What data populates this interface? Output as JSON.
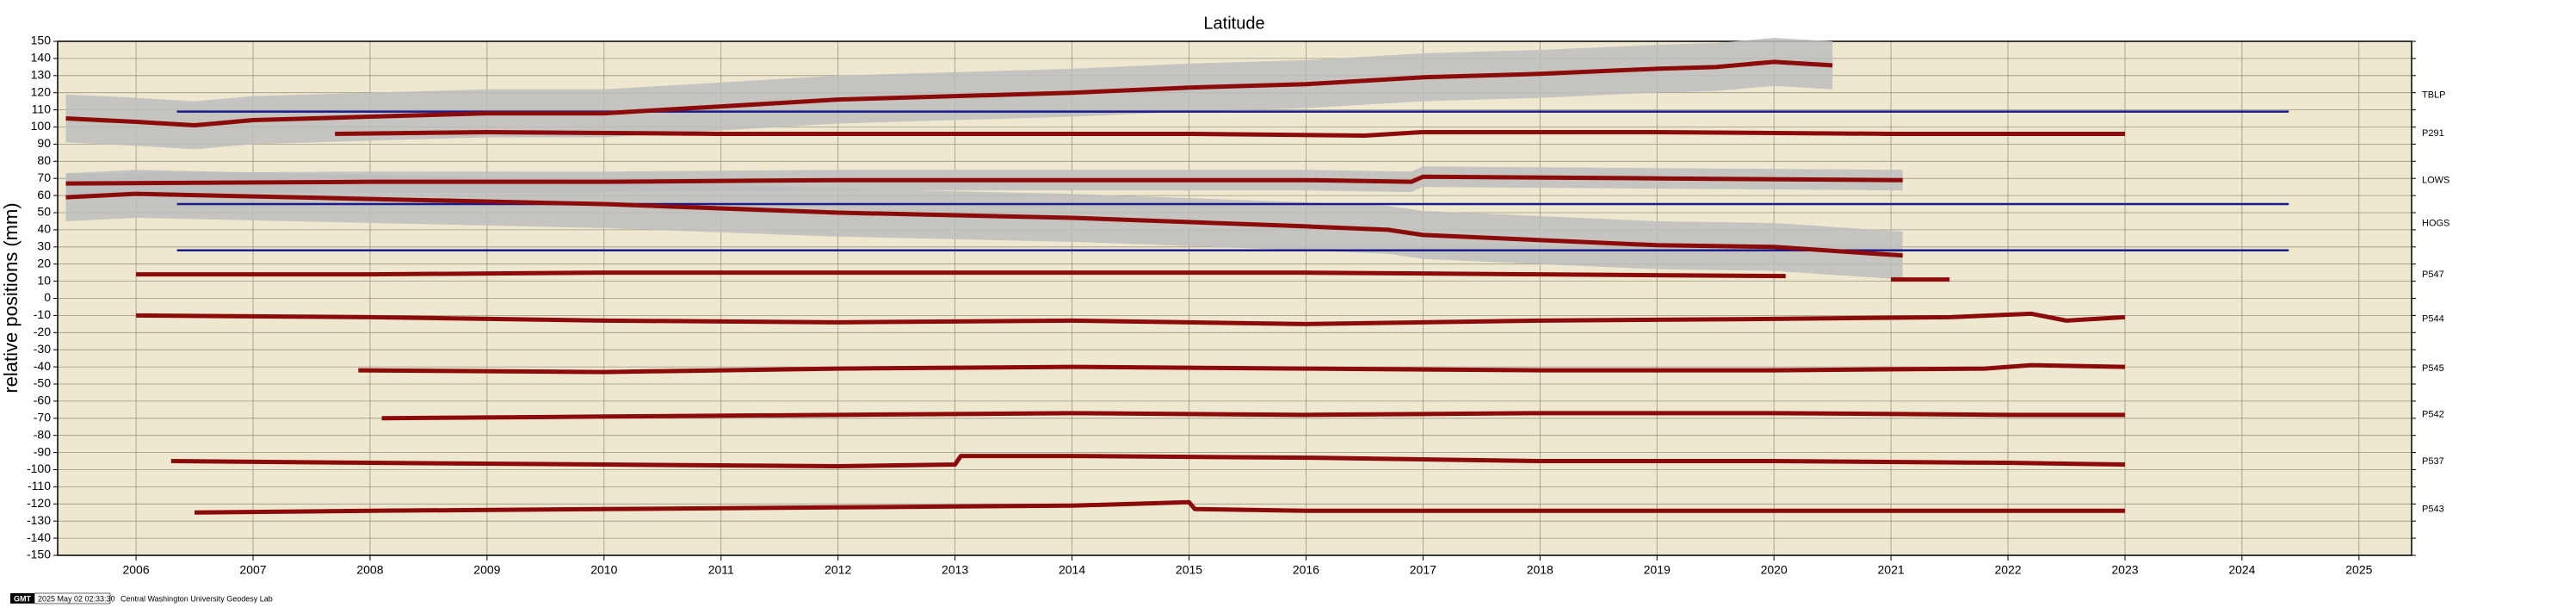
{
  "chart_data": {
    "type": "line",
    "title": "Latitude",
    "y_label": "relative positions (mm)",
    "xlim": [
      2005.33,
      2025.45
    ],
    "ylim": [
      -150,
      150
    ],
    "xticks": [
      2006,
      2007,
      2008,
      2009,
      2010,
      2011,
      2012,
      2013,
      2014,
      2015,
      2016,
      2017,
      2018,
      2019,
      2020,
      2021,
      2022,
      2023,
      2024,
      2025
    ],
    "yticks": [
      -150,
      -140,
      -130,
      -120,
      -110,
      -100,
      -90,
      -80,
      -70,
      -60,
      -50,
      -40,
      -30,
      -20,
      -10,
      0,
      10,
      20,
      30,
      40,
      50,
      60,
      70,
      80,
      90,
      100,
      110,
      120,
      130,
      140,
      150
    ],
    "grid": true,
    "background": "#efe8d0",
    "band_color": "#bdbdbd",
    "series": [
      {
        "name": "TBLP",
        "color": "#8b0a0a",
        "band": 14,
        "x": [
          2005.4,
          2006,
          2006.5,
          2007,
          2008,
          2009,
          2010,
          2011,
          2012,
          2013,
          2014,
          2015,
          2016,
          2017,
          2018,
          2019,
          2019.5,
          2020,
          2020.5
        ],
        "values": [
          105,
          103,
          101,
          104,
          106,
          108,
          108,
          112,
          116,
          118,
          120,
          123,
          125,
          129,
          131,
          134,
          135,
          138,
          136
        ]
      },
      {
        "name": "P291",
        "color": "#8b0a0a",
        "x": [
          2007.7,
          2009,
          2011,
          2013,
          2015,
          2016.5,
          2017,
          2019,
          2021,
          2023
        ],
        "values": [
          96,
          97,
          96,
          96,
          96,
          95,
          97,
          97,
          96,
          96
        ]
      },
      {
        "name": "LOWS",
        "color": "#8b0a0a",
        "band": 6,
        "x": [
          2005.4,
          2008,
          2010,
          2012,
          2014,
          2016,
          2016.9,
          2017,
          2019,
          2021.1
        ],
        "values": [
          67,
          68,
          68,
          69,
          69,
          69,
          68,
          71,
          70,
          69
        ]
      },
      {
        "name": "HOGS",
        "color": "#8b0a0a",
        "band": 14,
        "x": [
          2005.4,
          2006,
          2008,
          2010,
          2012,
          2014,
          2016,
          2016.7,
          2017,
          2018,
          2019,
          2020,
          2021.1
        ],
        "values": [
          59,
          61,
          58,
          55,
          50,
          47,
          42,
          40,
          37,
          34,
          31,
          30,
          25
        ]
      },
      {
        "name": "P547",
        "color": "#8b0a0a",
        "x": [
          2006,
          2008,
          2010,
          2012,
          2014,
          2016,
          2018,
          2020.1,
          2020.5,
          2021,
          2021.5
        ],
        "values": [
          14,
          14,
          15,
          15,
          15,
          15,
          14,
          13,
          null,
          11,
          11
        ]
      },
      {
        "name": "P544",
        "color": "#8b0a0a",
        "x": [
          2006,
          2008,
          2010,
          2012,
          2014,
          2016,
          2018,
          2020,
          2021.5,
          2022.2,
          2022.5,
          2023
        ],
        "values": [
          -10,
          -11,
          -13,
          -14,
          -13,
          -15,
          -13,
          -12,
          -11,
          -9,
          -13,
          -11
        ]
      },
      {
        "name": "P545",
        "color": "#8b0a0a",
        "x": [
          2007.9,
          2010,
          2012,
          2014,
          2016,
          2018,
          2020,
          2021.8,
          2022.2,
          2023
        ],
        "values": [
          -42,
          -43,
          -41,
          -40,
          -41,
          -42,
          -42,
          -41,
          -39,
          -40
        ]
      },
      {
        "name": "P542",
        "color": "#8b0a0a",
        "x": [
          2008.1,
          2010,
          2012,
          2014,
          2016,
          2018,
          2020,
          2022,
          2023
        ],
        "values": [
          -70,
          -69,
          -68,
          -67,
          -68,
          -67,
          -67,
          -68,
          -68
        ]
      },
      {
        "name": "P537",
        "color": "#8b0a0a",
        "x": [
          2006.3,
          2008,
          2010,
          2012,
          2013,
          2013.05,
          2014,
          2016,
          2018,
          2020,
          2022,
          2023
        ],
        "values": [
          -95,
          -96,
          -97,
          -98,
          -97,
          -92,
          -92,
          -93,
          -95,
          -95,
          -96,
          -97
        ]
      },
      {
        "name": "P543",
        "color": "#8b0a0a",
        "x": [
          2006.5,
          2008,
          2010,
          2012,
          2014,
          2015,
          2015.05,
          2016,
          2018,
          2020,
          2022,
          2023
        ],
        "values": [
          -125,
          -124,
          -123,
          -122,
          -121,
          -119,
          -123,
          -124,
          -124,
          -124,
          -124,
          -124
        ]
      }
    ],
    "reference_lines": [
      {
        "color": "#1a1a8c",
        "y": 109,
        "x": [
          2006.35,
          2024.4
        ]
      },
      {
        "color": "#1a1a8c",
        "y": 55,
        "x": [
          2006.35,
          2024.4
        ]
      },
      {
        "color": "#1a1a8c",
        "y": 28,
        "x": [
          2006.35,
          2024.4
        ]
      }
    ],
    "footer": {
      "logo": "GMT",
      "timestamp": "2025 May 02 02:33:30",
      "credit": "Central Washington University Geodesy Lab"
    }
  }
}
